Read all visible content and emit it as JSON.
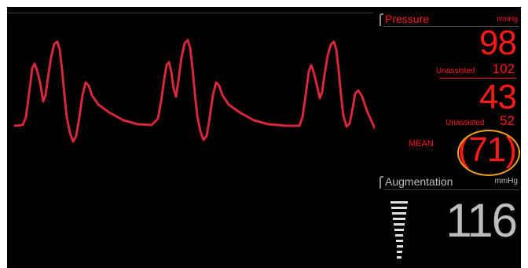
{
  "pressure": {
    "title": "Pressure",
    "unit": "mmHg",
    "systolic": "98",
    "unassisted_systolic_label": "Unassisted",
    "unassisted_systolic_value": "102",
    "diastolic": "43",
    "unassisted_diastolic_label": "Unassisted",
    "unassisted_diastolic_value": "52",
    "mean_label": "MEAN",
    "mean_value": "(71)"
  },
  "augmentation": {
    "title": "Augmentation",
    "unit": "mmHg",
    "value": "116"
  },
  "colors": {
    "waveform": "#d6283c",
    "pressure_text": "#ff1a1a",
    "augmentation_text": "#bdbdbd",
    "highlight_circle": "#f4a21a",
    "background": "#000000"
  },
  "icons": {
    "augmentation_level": "bar-level-icon"
  }
}
